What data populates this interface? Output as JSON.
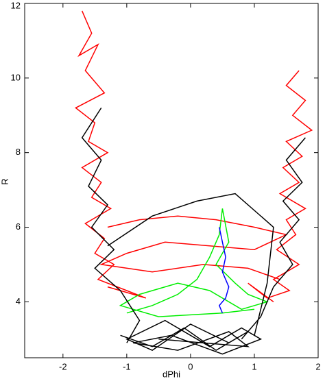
{
  "chart_data": {
    "type": "line",
    "x_label": "dPhi",
    "y_label": "R",
    "xlim": [
      -2.6,
      2
    ],
    "ylim": [
      2.5,
      12
    ],
    "xticks": [
      -2,
      -1,
      0,
      1,
      2
    ],
    "yticks": [
      4,
      6,
      8,
      10,
      12
    ],
    "grid": false,
    "series": [
      {
        "color": "#ff0000",
        "x": [
          -1.7,
          -1.55,
          -1.75,
          -1.45,
          -1.65,
          -1.35,
          -1.8,
          -1.5,
          -1.6,
          -1.3,
          -1.7,
          -1.4,
          -1.55,
          -1.25,
          -1.65,
          -1.35,
          -1.5,
          -1.2,
          -1.45,
          -1.0,
          -0.7,
          -1.3
        ],
        "values": [
          11.8,
          11.2,
          10.6,
          10.9,
          10.2,
          9.6,
          9.2,
          8.8,
          8.3,
          8.0,
          7.6,
          7.2,
          6.8,
          6.5,
          6.1,
          5.7,
          5.3,
          5.0,
          4.6,
          4.3,
          4.1,
          4.4
        ]
      },
      {
        "color": "#ff0000",
        "x": [
          1.7,
          1.5,
          1.8,
          1.6,
          1.9,
          1.5,
          1.75,
          1.45,
          1.7,
          1.4,
          1.8,
          1.5,
          1.65,
          1.35,
          1.7,
          1.3,
          1.55,
          1.2,
          0.9,
          1.3
        ],
        "values": [
          10.2,
          9.8,
          9.4,
          9.0,
          8.6,
          8.3,
          7.9,
          7.6,
          7.2,
          6.9,
          6.5,
          6.2,
          5.8,
          5.4,
          5.0,
          4.6,
          4.3,
          4.1,
          4.5,
          4.0
        ]
      },
      {
        "color": "#ff0000",
        "x": [
          -1.3,
          -0.8,
          -0.2,
          0.4,
          1.0,
          1.5,
          1.0,
          0.3,
          -0.4,
          -1.0,
          -1.4,
          -0.6,
          0.2,
          0.9,
          1.4
        ],
        "values": [
          6.0,
          6.2,
          6.3,
          6.2,
          6.0,
          5.8,
          5.4,
          5.5,
          5.6,
          5.3,
          5.0,
          4.8,
          5.0,
          4.9,
          4.6
        ]
      },
      {
        "color": "#00ee00",
        "x": [
          -1.0,
          -0.6,
          -0.2,
          0.1,
          0.3,
          0.45,
          0.5,
          0.6,
          0.4,
          0.7,
          0.9,
          1.2,
          0.8,
          0.3,
          -0.2,
          -0.8,
          -1.1,
          -0.5,
          0.5,
          1.0
        ],
        "values": [
          3.7,
          3.9,
          4.2,
          4.6,
          5.2,
          5.8,
          6.5,
          5.6,
          5.0,
          4.5,
          4.2,
          4.0,
          3.8,
          4.3,
          4.5,
          4.2,
          3.9,
          3.6,
          3.7,
          3.8
        ]
      },
      {
        "color": "#0000ff",
        "x": [
          0.45,
          0.5,
          0.55,
          0.5,
          0.6,
          0.55,
          0.45,
          0.5
        ],
        "values": [
          6.0,
          5.6,
          5.2,
          4.8,
          4.4,
          4.1,
          3.9,
          3.7
        ]
      },
      {
        "color": "#000000",
        "x": [
          -1.1,
          -0.6,
          -0.1,
          0.4,
          0.9,
          0.6,
          0.0,
          -0.6,
          -1.0,
          -0.4,
          0.3,
          0.8,
          1.1,
          0.5,
          -0.3,
          -0.9,
          -0.2,
          0.6,
          0.9,
          -0.5
        ],
        "values": [
          3.1,
          2.8,
          3.3,
          2.7,
          3.2,
          2.9,
          3.4,
          2.7,
          3.0,
          3.5,
          2.8,
          3.3,
          3.0,
          2.6,
          3.1,
          2.9,
          2.7,
          3.2,
          2.8,
          3.0
        ]
      },
      {
        "color": "#000000",
        "x": [
          -1.4,
          -1.7,
          -1.4,
          -1.6,
          -1.3,
          -1.55,
          -1.2,
          -1.5,
          -1.1,
          -0.8,
          -1.0
        ],
        "values": [
          9.2,
          8.4,
          7.8,
          7.1,
          6.6,
          6.0,
          5.4,
          4.9,
          4.3,
          3.5,
          2.9
        ]
      },
      {
        "color": "#000000",
        "x": [
          1.8,
          1.5,
          1.75,
          1.45,
          1.7,
          1.4,
          1.6,
          1.3,
          1.1,
          0.8
        ],
        "values": [
          8.4,
          7.8,
          7.2,
          6.7,
          6.2,
          5.6,
          5.0,
          4.4,
          3.6,
          3.0
        ]
      },
      {
        "color": "#000000",
        "x": [
          -1.3,
          -0.6,
          0.1,
          0.7,
          1.3,
          1.2,
          1.0
        ],
        "values": [
          5.5,
          6.3,
          6.7,
          6.9,
          6.0,
          4.5,
          3.1
        ]
      }
    ]
  }
}
